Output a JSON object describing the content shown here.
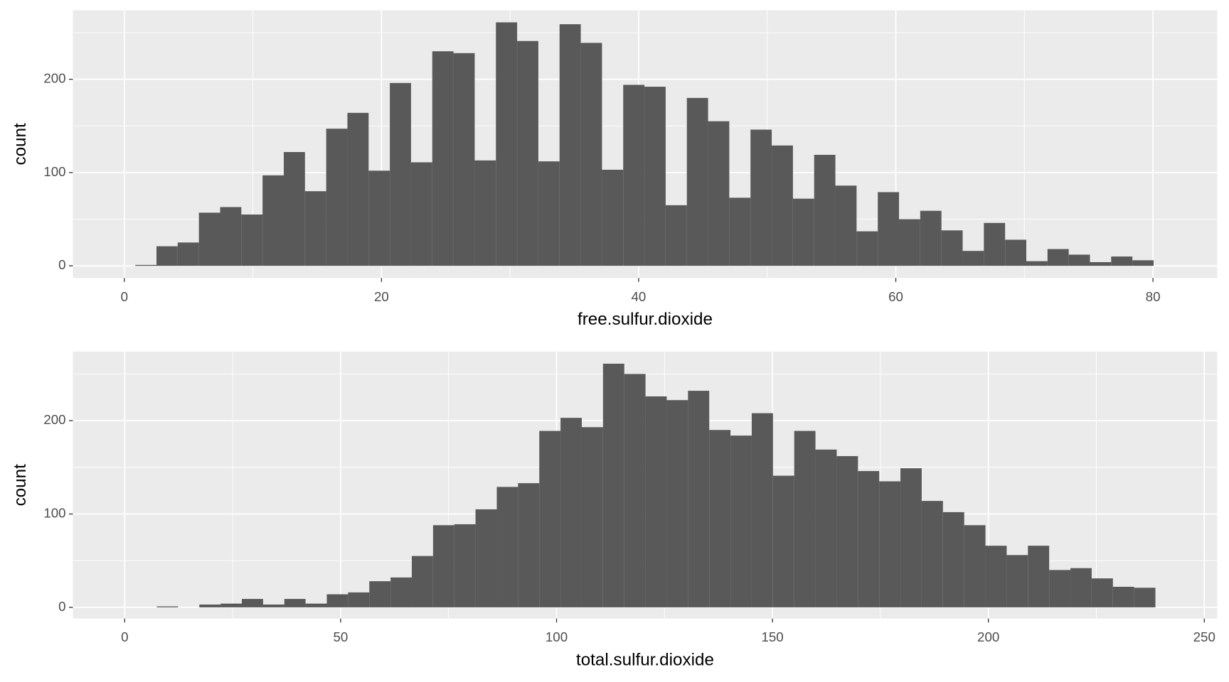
{
  "chart_data": [
    {
      "type": "histogram",
      "xlabel": "free.sulfur.dioxide",
      "ylabel": "count",
      "color": "#595959",
      "grid": true,
      "bins": [
        0.85,
        2.5,
        4.15,
        5.8,
        7.45,
        9.1,
        10.75,
        12.4,
        14.05,
        15.7,
        17.35,
        19,
        20.65,
        22.3,
        23.95,
        25.6,
        27.25,
        28.9,
        30.55,
        32.2,
        33.85,
        35.5,
        37.15,
        38.8,
        40.45,
        42.1,
        43.75,
        45.4,
        47.05,
        48.7,
        50.35,
        52,
        53.65,
        55.3,
        56.95,
        58.6,
        60.25,
        61.9,
        63.55,
        65.2,
        66.85,
        68.5,
        70.15,
        71.8,
        73.45,
        75.1,
        76.75,
        78.4,
        80.05
      ],
      "values": [
        1,
        21,
        25,
        57,
        63,
        55,
        97,
        122,
        80,
        147,
        164,
        102,
        196,
        111,
        230,
        228,
        113,
        261,
        241,
        112,
        259,
        239,
        103,
        194,
        192,
        65,
        180,
        155,
        73,
        146,
        129,
        72,
        119,
        86,
        37,
        79,
        50,
        59,
        38,
        16,
        46,
        28,
        5,
        18,
        12,
        4,
        10,
        6
      ],
      "xlim": [
        -4,
        85
      ],
      "ylim": [
        -13,
        274
      ],
      "xticks": [
        0,
        20,
        40,
        60,
        80
      ],
      "yticks": [
        0,
        100,
        200
      ],
      "xminor": [
        10,
        30,
        50,
        70
      ],
      "yminor": [
        50,
        150,
        250
      ]
    },
    {
      "type": "histogram",
      "xlabel": "total.sulfur.dioxide",
      "ylabel": "count",
      "color": "#595959",
      "grid": true,
      "bins": [
        7.44,
        12.36,
        17.28,
        22.2,
        27.12,
        32.04,
        36.96,
        41.88,
        46.8,
        51.72,
        56.64,
        61.56,
        66.48,
        71.4,
        76.32,
        81.24,
        86.16,
        91.08,
        96,
        100.92,
        105.84,
        110.76,
        115.68,
        120.6,
        125.52,
        130.44,
        135.36,
        140.28,
        145.2,
        150.12,
        155.04,
        159.96,
        164.88,
        169.8,
        174.72,
        179.64,
        184.56,
        189.48,
        194.4,
        199.32,
        204.24,
        209.16,
        214.08,
        219,
        223.92,
        228.84,
        233.76,
        238.68
      ],
      "values": [
        1,
        0,
        3,
        4,
        9,
        3,
        9,
        4,
        14,
        16,
        28,
        32,
        55,
        88,
        89,
        105,
        129,
        133,
        189,
        203,
        193,
        261,
        250,
        226,
        222,
        232,
        190,
        184,
        208,
        141,
        189,
        169,
        162,
        146,
        135,
        149,
        114,
        102,
        88,
        66,
        56,
        66,
        40,
        42,
        31,
        22,
        21
      ],
      "xlim": [
        -12,
        253
      ],
      "ylim": [
        -12,
        274
      ],
      "xticks": [
        0,
        50,
        100,
        150,
        200,
        250
      ],
      "yticks": [
        0,
        100,
        200
      ],
      "xminor": [
        25,
        75,
        125,
        175,
        225
      ],
      "yminor": [
        50,
        150,
        250
      ]
    }
  ]
}
